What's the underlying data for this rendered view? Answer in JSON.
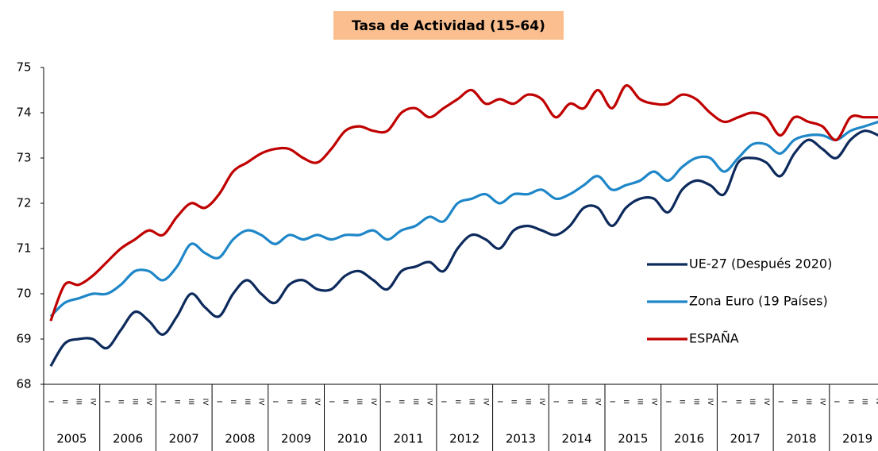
{
  "chart_data": {
    "type": "line",
    "title": "Tasa de Actividad (15-64)",
    "categories": [
      "I",
      "II",
      "III",
      "IV",
      "I",
      "II",
      "III",
      "IV",
      "I",
      "II",
      "III",
      "IV",
      "I",
      "II",
      "III",
      "IV",
      "I",
      "II",
      "III",
      "IV",
      "I",
      "II",
      "III",
      "IV",
      "I",
      "II",
      "III",
      "IV",
      "I",
      "II",
      "III",
      "IV",
      "I",
      "II",
      "III",
      "IV",
      "I",
      "II",
      "III",
      "IV",
      "I",
      "II",
      "III",
      "IV",
      "I",
      "II",
      "III",
      "IV",
      "I",
      "II",
      "III",
      "IV",
      "I",
      "II",
      "III",
      "IV",
      "I",
      "II",
      "III",
      "IV"
    ],
    "category_groups": [
      "2005",
      "2006",
      "2007",
      "2008",
      "2009",
      "2010",
      "2011",
      "2012",
      "2013",
      "2014",
      "2015",
      "2016",
      "2017",
      "2018",
      "2019"
    ],
    "ylim": [
      68,
      75
    ],
    "yticks": [
      68,
      69,
      70,
      71,
      72,
      73,
      74,
      75
    ],
    "grid": false,
    "legend": "right",
    "series": [
      {
        "name": "UE-27 (Después 2020)",
        "color": "#0d2a5c",
        "values": [
          68.4,
          68.9,
          69.0,
          69.0,
          68.8,
          69.2,
          69.6,
          69.4,
          69.1,
          69.5,
          70.0,
          69.7,
          69.5,
          70.0,
          70.3,
          70.0,
          69.8,
          70.2,
          70.3,
          70.1,
          70.1,
          70.4,
          70.5,
          70.3,
          70.1,
          70.5,
          70.6,
          70.7,
          70.5,
          71.0,
          71.3,
          71.2,
          71.0,
          71.4,
          71.5,
          71.4,
          71.3,
          71.5,
          71.9,
          71.9,
          71.5,
          71.9,
          72.1,
          72.1,
          71.8,
          72.3,
          72.5,
          72.4,
          72.2,
          72.9,
          73.0,
          72.9,
          72.6,
          73.1,
          73.4,
          73.2,
          73.0,
          73.4,
          73.6,
          73.5
        ]
      },
      {
        "name": "Zona Euro (19 Países)",
        "color": "#1f87c8",
        "values": [
          69.5,
          69.8,
          69.9,
          70.0,
          70.0,
          70.2,
          70.5,
          70.5,
          70.3,
          70.6,
          71.1,
          70.9,
          70.8,
          71.2,
          71.4,
          71.3,
          71.1,
          71.3,
          71.2,
          71.3,
          71.2,
          71.3,
          71.3,
          71.4,
          71.2,
          71.4,
          71.5,
          71.7,
          71.6,
          72.0,
          72.1,
          72.2,
          72.0,
          72.2,
          72.2,
          72.3,
          72.1,
          72.2,
          72.4,
          72.6,
          72.3,
          72.4,
          72.5,
          72.7,
          72.5,
          72.8,
          73.0,
          73.0,
          72.7,
          73.0,
          73.3,
          73.3,
          73.1,
          73.4,
          73.5,
          73.5,
          73.4,
          73.6,
          73.7,
          73.8
        ]
      },
      {
        "name": "ESPAÑA",
        "color": "#c00000",
        "values": [
          69.4,
          70.2,
          70.2,
          70.4,
          70.7,
          71.0,
          71.2,
          71.4,
          71.3,
          71.7,
          72.0,
          71.9,
          72.2,
          72.7,
          72.9,
          73.1,
          73.2,
          73.2,
          73.0,
          72.9,
          73.2,
          73.6,
          73.7,
          73.6,
          73.6,
          74.0,
          74.1,
          73.9,
          74.1,
          74.3,
          74.5,
          74.2,
          74.3,
          74.2,
          74.4,
          74.3,
          73.9,
          74.2,
          74.1,
          74.5,
          74.1,
          74.6,
          74.3,
          74.2,
          74.2,
          74.4,
          74.3,
          74.0,
          73.8,
          73.9,
          74.0,
          73.9,
          73.5,
          73.9,
          73.8,
          73.7,
          73.4,
          73.9,
          73.9,
          73.9
        ]
      }
    ]
  }
}
